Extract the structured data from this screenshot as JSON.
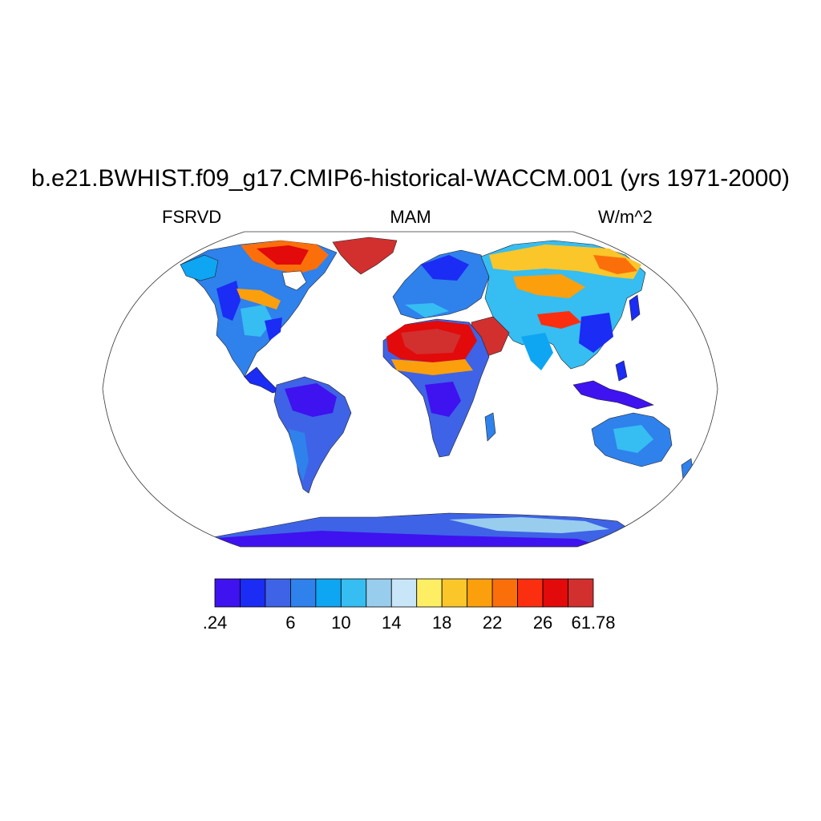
{
  "title": "b.e21.BWHIST.f09_g17.CMIP6-historical-WACCM.001 (yrs 1971-2000)",
  "left_label": "FSRVD",
  "center_label": "MAM",
  "right_label": "W/m^2",
  "colorbar": {
    "colors": [
      "#3f12f0",
      "#1b2cf4",
      "#3e63e6",
      "#2f81ec",
      "#0ea5f3",
      "#36bdf2",
      "#99cdee",
      "#c9e6f8",
      "#fdee64",
      "#fbc62a",
      "#fb9f0d",
      "#fb6f0b",
      "#fb2f10",
      "#e20a0a",
      "#d22f2f"
    ],
    "tick_labels": [
      {
        "label": ".24",
        "index": 0
      },
      {
        "label": "6",
        "index": 3
      },
      {
        "label": "10",
        "index": 5
      },
      {
        "label": "14",
        "index": 7
      },
      {
        "label": "18",
        "index": 9
      },
      {
        "label": "22",
        "index": 11
      },
      {
        "label": "26",
        "index": 13
      },
      {
        "label": "61.78",
        "index": 15
      }
    ]
  }
}
